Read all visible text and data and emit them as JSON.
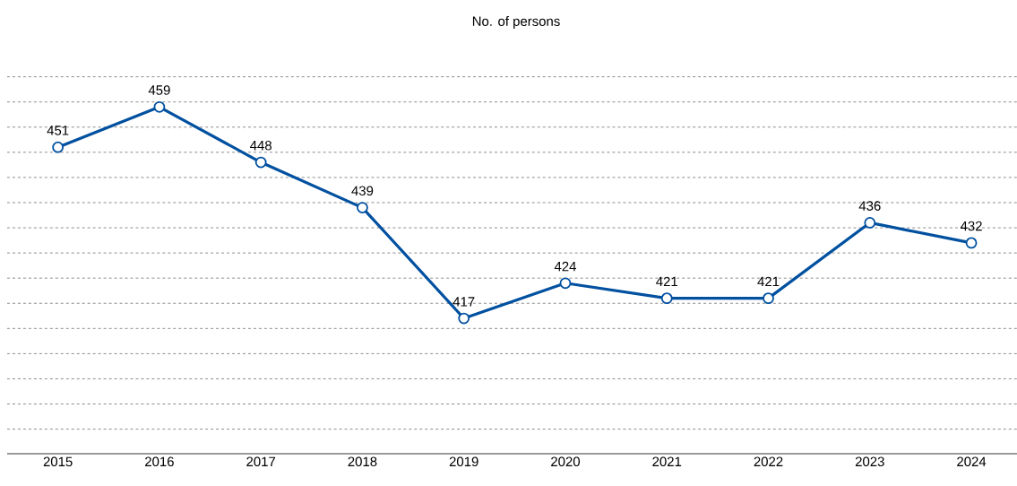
{
  "chart_data": {
    "type": "line",
    "title": "No. of persons",
    "categories": [
      "2015",
      "2016",
      "2017",
      "2018",
      "2019",
      "2020",
      "2021",
      "2022",
      "2023",
      "2024"
    ],
    "series": [
      {
        "color": "#0050a0",
        "values": [
          451,
          459,
          448,
          439,
          417,
          424,
          421,
          421,
          436,
          432
        ]
      }
    ],
    "tick_labels": "x",
    "grid": "y",
    "data_labels": true,
    "marker": "circle",
    "line_style": "solid"
  }
}
